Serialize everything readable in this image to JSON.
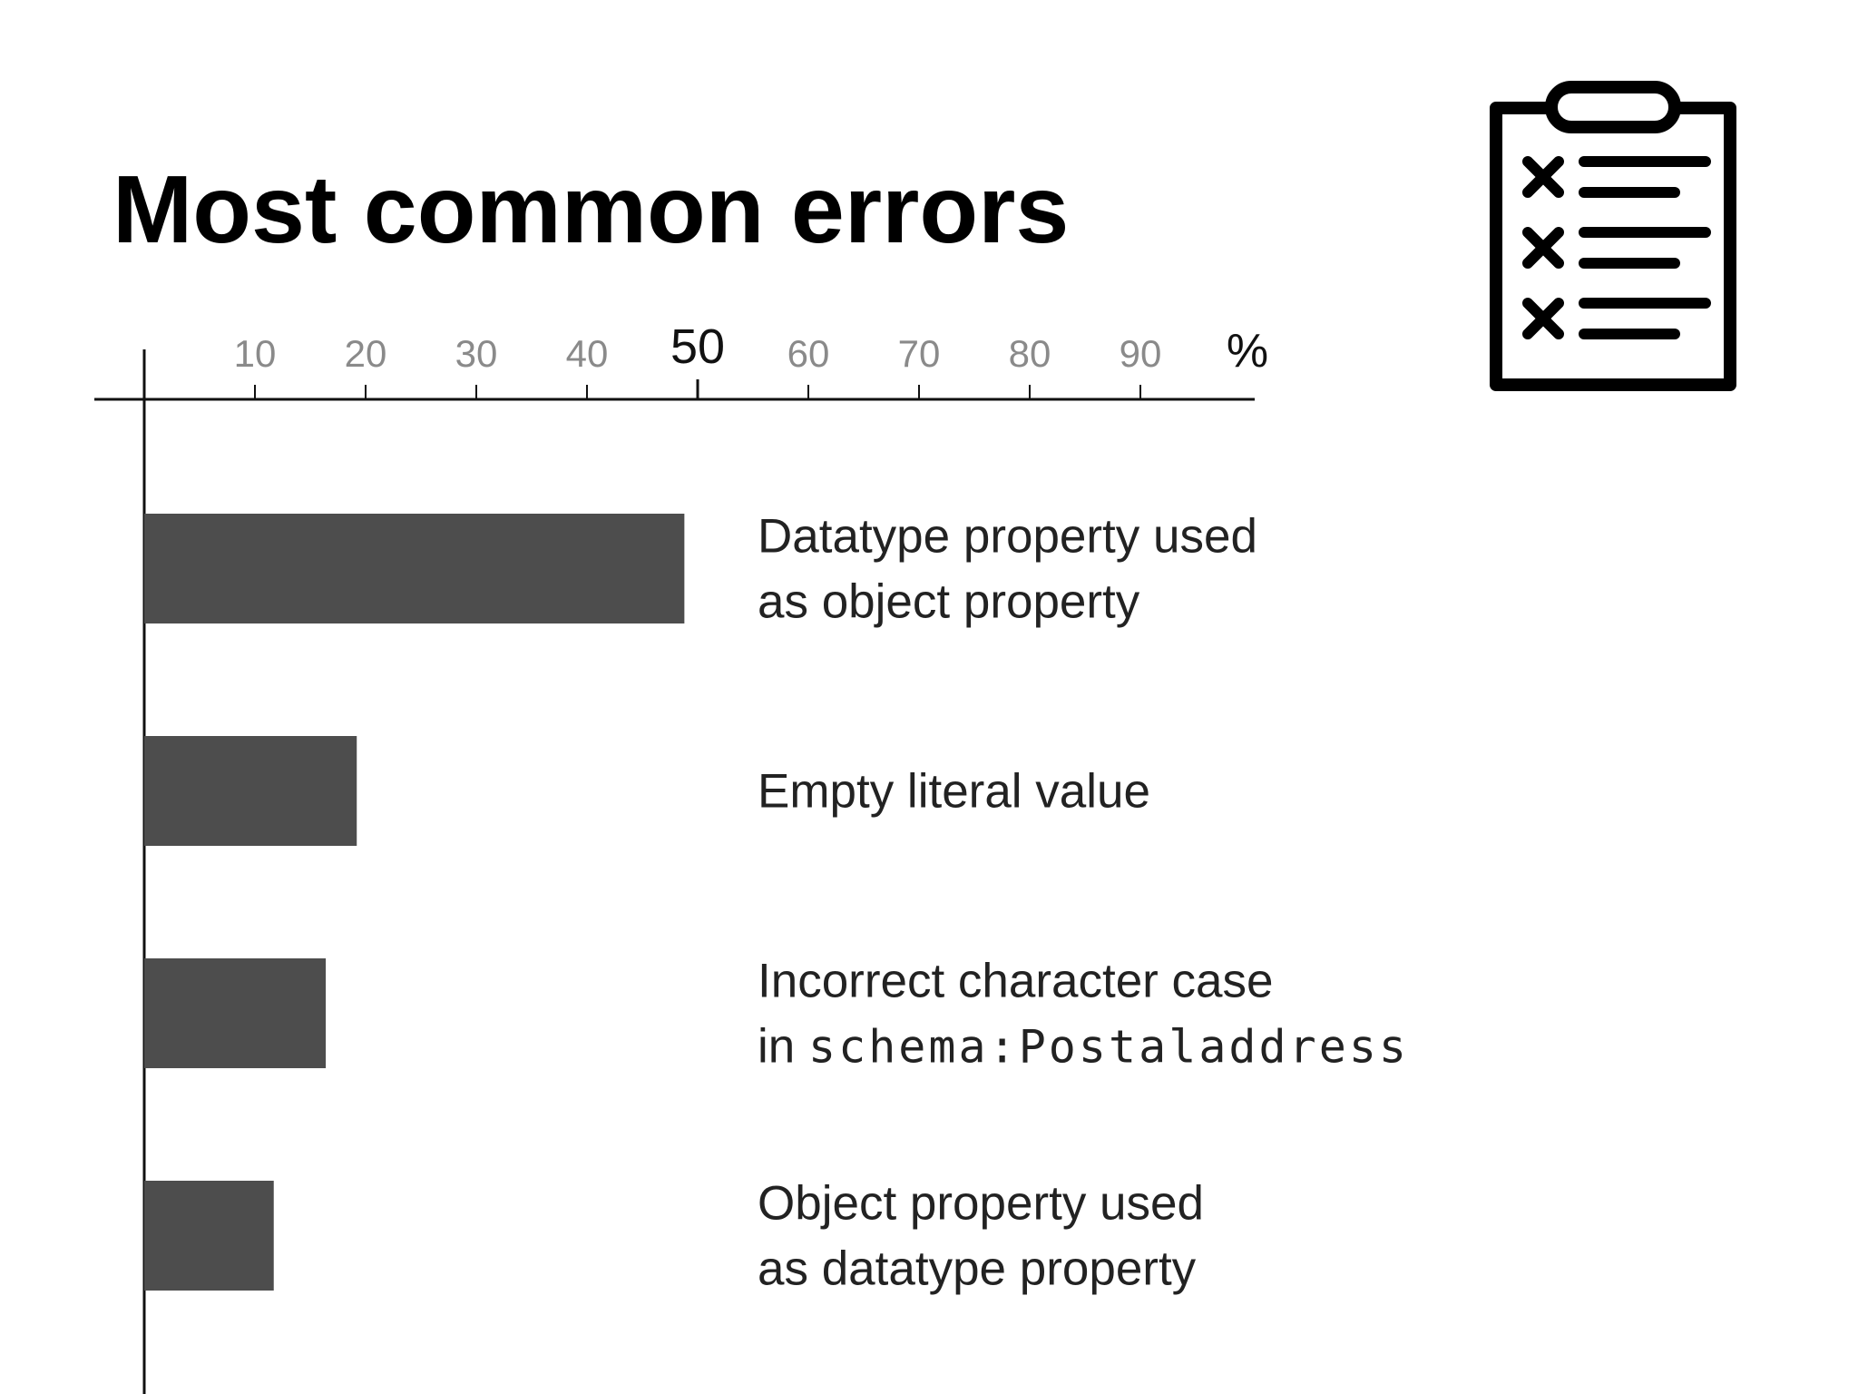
{
  "title": "Most common errors",
  "icon": "clipboard-checklist-icon",
  "colors": {
    "bar": "#4d4d4d",
    "axis": "#111111",
    "text": "#222222"
  },
  "chart_data": {
    "type": "bar",
    "orientation": "horizontal",
    "title": "Most common errors",
    "xlim": [
      0,
      100
    ],
    "x_unit": "%",
    "x_ticks": [
      10,
      20,
      30,
      40,
      50,
      60,
      70,
      80,
      90
    ],
    "highlighted_tick": 50,
    "grid": false,
    "categories": [
      {
        "lines": [
          "Datatype property used",
          "as object property"
        ]
      },
      {
        "lines": [
          "Empty literal value"
        ]
      },
      {
        "lines": [
          "Incorrect character case"
        ],
        "prefix": "in ",
        "code": "schema:Postaladdress"
      },
      {
        "lines": [
          "Object property used",
          "as datatype property"
        ]
      }
    ],
    "values": [
      48.8,
      19.2,
      16.4,
      11.7
    ]
  }
}
